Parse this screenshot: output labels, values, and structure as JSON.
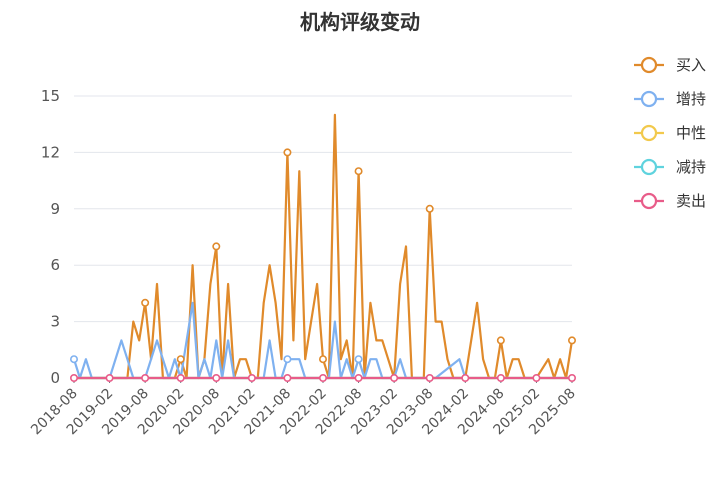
{
  "chart_data": {
    "type": "line",
    "title": "机构评级变动",
    "ylim": [
      0,
      15
    ],
    "yticks": [
      0,
      3,
      6,
      9,
      12,
      15
    ],
    "xtick_labels": [
      "2018-08",
      "2019-02",
      "2019-08",
      "2020-02",
      "2020-08",
      "2021-02",
      "2021-08",
      "2022-02",
      "2022-08",
      "2023-02",
      "2023-08",
      "2024-02",
      "2024-08",
      "2025-02",
      "2025-08"
    ],
    "x_range": [
      "2018-08",
      "2025-08"
    ],
    "grid": "horizontal",
    "legend_position": "right",
    "series": [
      {
        "name": "买入",
        "color": "#E08A2B",
        "points": [
          [
            "2018-08",
            0
          ],
          [
            "2019-02",
            0
          ],
          [
            "2019-05",
            0
          ],
          [
            "2019-06",
            3
          ],
          [
            "2019-07",
            2
          ],
          [
            "2019-08",
            4
          ],
          [
            "2019-09",
            1
          ],
          [
            "2019-10",
            5
          ],
          [
            "2019-11",
            0
          ],
          [
            "2020-01",
            0
          ],
          [
            "2020-02",
            1
          ],
          [
            "2020-03",
            0
          ],
          [
            "2020-04",
            6
          ],
          [
            "2020-05",
            0
          ],
          [
            "2020-06",
            1
          ],
          [
            "2020-07",
            5
          ],
          [
            "2020-08",
            7
          ],
          [
            "2020-09",
            0
          ],
          [
            "2020-10",
            5
          ],
          [
            "2020-11",
            0
          ],
          [
            "2020-12",
            1
          ],
          [
            "2021-01",
            1
          ],
          [
            "2021-02",
            0
          ],
          [
            "2021-03",
            0
          ],
          [
            "2021-04",
            4
          ],
          [
            "2021-05",
            6
          ],
          [
            "2021-06",
            4
          ],
          [
            "2021-07",
            1
          ],
          [
            "2021-08",
            12
          ],
          [
            "2021-09",
            2
          ],
          [
            "2021-10",
            11
          ],
          [
            "2021-11",
            1
          ],
          [
            "2021-12",
            3
          ],
          [
            "2022-01",
            5
          ],
          [
            "2022-02",
            1
          ],
          [
            "2022-03",
            0
          ],
          [
            "2022-04",
            14
          ],
          [
            "2022-05",
            1
          ],
          [
            "2022-06",
            2
          ],
          [
            "2022-07",
            0
          ],
          [
            "2022-08",
            11
          ],
          [
            "2022-09",
            0
          ],
          [
            "2022-10",
            4
          ],
          [
            "2022-11",
            2
          ],
          [
            "2022-12",
            2
          ],
          [
            "2023-01",
            1
          ],
          [
            "2023-02",
            0
          ],
          [
            "2023-03",
            5
          ],
          [
            "2023-04",
            7
          ],
          [
            "2023-05",
            0
          ],
          [
            "2023-07",
            0
          ],
          [
            "2023-08",
            9
          ],
          [
            "2023-09",
            3
          ],
          [
            "2023-10",
            3
          ],
          [
            "2023-11",
            1
          ],
          [
            "2023-12",
            0
          ],
          [
            "2024-02",
            0
          ],
          [
            "2024-04",
            4
          ],
          [
            "2024-05",
            1
          ],
          [
            "2024-06",
            0
          ],
          [
            "2024-07",
            0
          ],
          [
            "2024-08",
            2
          ],
          [
            "2024-09",
            0
          ],
          [
            "2024-10",
            1
          ],
          [
            "2024-11",
            1
          ],
          [
            "2024-12",
            0
          ],
          [
            "2025-02",
            0
          ],
          [
            "2025-04",
            1
          ],
          [
            "2025-05",
            0
          ],
          [
            "2025-06",
            1
          ],
          [
            "2025-07",
            0
          ],
          [
            "2025-08",
            2
          ]
        ],
        "markers": [
          "2019-08",
          "2020-02",
          "2020-08",
          "2021-08",
          "2022-02",
          "2022-08",
          "2023-08",
          "2024-08",
          "2025-08"
        ]
      },
      {
        "name": "增持",
        "color": "#7FB1F0",
        "points": [
          [
            "2018-08",
            1
          ],
          [
            "2018-09",
            0
          ],
          [
            "2018-10",
            1
          ],
          [
            "2018-11",
            0
          ],
          [
            "2019-02",
            0
          ],
          [
            "2019-04",
            2
          ],
          [
            "2019-05",
            1
          ],
          [
            "2019-06",
            0
          ],
          [
            "2019-07",
            0
          ],
          [
            "2019-08",
            0
          ],
          [
            "2019-10",
            2
          ],
          [
            "2019-11",
            1
          ],
          [
            "2019-12",
            0
          ],
          [
            "2020-01",
            1
          ],
          [
            "2020-02",
            0
          ],
          [
            "2020-04",
            4
          ],
          [
            "2020-05",
            0
          ],
          [
            "2020-06",
            1
          ],
          [
            "2020-07",
            0
          ],
          [
            "2020-08",
            2
          ],
          [
            "2020-09",
            0
          ],
          [
            "2020-10",
            2
          ],
          [
            "2020-11",
            0
          ],
          [
            "2021-02",
            0
          ],
          [
            "2021-04",
            0
          ],
          [
            "2021-05",
            2
          ],
          [
            "2021-06",
            0
          ],
          [
            "2021-07",
            0
          ],
          [
            "2021-08",
            1
          ],
          [
            "2021-09",
            1
          ],
          [
            "2021-10",
            1
          ],
          [
            "2021-11",
            0
          ],
          [
            "2022-02",
            0
          ],
          [
            "2022-03",
            0
          ],
          [
            "2022-04",
            3
          ],
          [
            "2022-05",
            0
          ],
          [
            "2022-06",
            1
          ],
          [
            "2022-07",
            0
          ],
          [
            "2022-08",
            1
          ],
          [
            "2022-09",
            0
          ],
          [
            "2022-10",
            1
          ],
          [
            "2022-11",
            1
          ],
          [
            "2022-12",
            0
          ],
          [
            "2023-02",
            0
          ],
          [
            "2023-03",
            1
          ],
          [
            "2023-04",
            0
          ],
          [
            "2023-08",
            0
          ],
          [
            "2023-09",
            0
          ],
          [
            "2024-01",
            1
          ],
          [
            "2024-02",
            0
          ]
        ],
        "markers": [
          "2018-08",
          "2021-08",
          "2022-08"
        ]
      },
      {
        "name": "中性",
        "color": "#F2C94C",
        "points": [
          [
            "2018-08",
            0
          ],
          [
            "2025-08",
            0
          ]
        ],
        "markers": []
      },
      {
        "name": "减持",
        "color": "#5FD3DE",
        "points": [
          [
            "2018-08",
            0
          ],
          [
            "2025-08",
            0
          ]
        ],
        "markers": []
      },
      {
        "name": "卖出",
        "color": "#E85C89",
        "points": [
          [
            "2018-08",
            0
          ],
          [
            "2025-08",
            0
          ]
        ],
        "markers": [
          "2018-08",
          "2019-02",
          "2019-08",
          "2020-02",
          "2020-08",
          "2021-02",
          "2021-08",
          "2022-02",
          "2022-08",
          "2023-02",
          "2023-08",
          "2024-02",
          "2024-08",
          "2025-02",
          "2025-08"
        ]
      }
    ]
  }
}
